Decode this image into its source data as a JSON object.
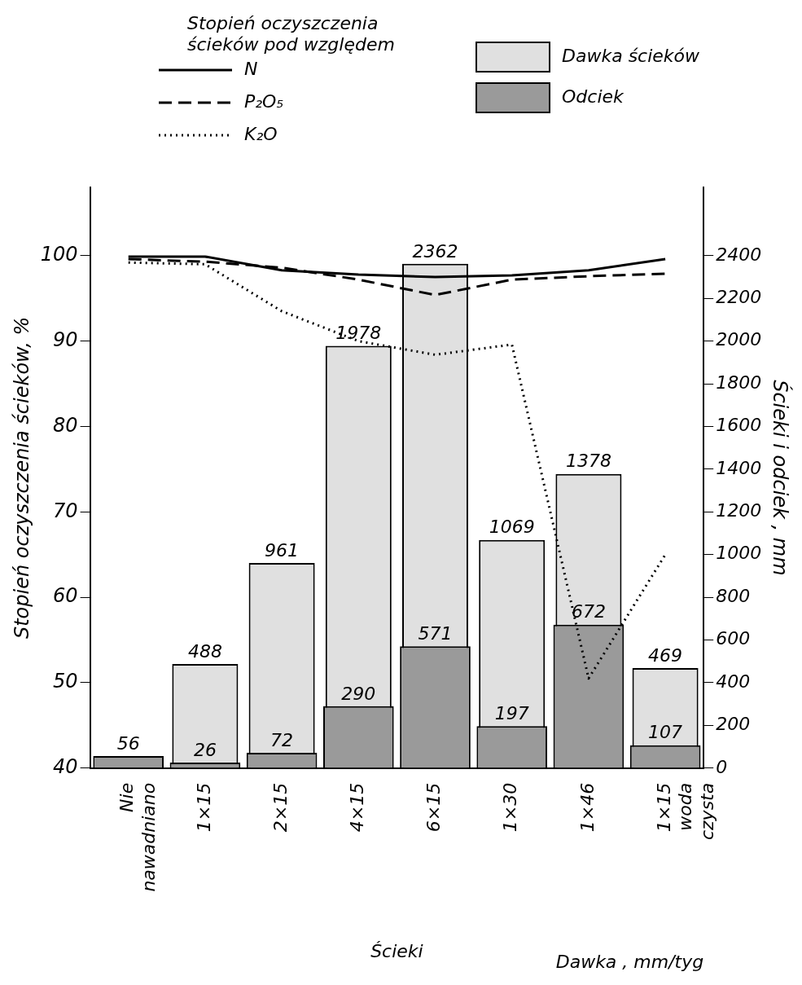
{
  "chart_data": {
    "type": "line",
    "legend_title": "Stopień oczyszczenia ścieków pod względem",
    "xlabel": "Dawka , mm/tyg",
    "ylabel": "Stopień oczyszczenia ścieków, %",
    "y2label": "Ścieki i odciek , mm",
    "categories": [
      "Nie nawadniano",
      "1×15",
      "2×15",
      "4×15",
      "6×15",
      "1×30",
      "1×46",
      "1×15 woda czysta"
    ],
    "series": [
      {
        "name": "N",
        "color": "#000000",
        "line_style": "solid",
        "values": [
          99.9,
          99.9,
          98.3,
          97.8,
          97.5,
          97.7,
          98.3,
          99.6
        ]
      },
      {
        "name": "P₂O₅",
        "color": "#000000",
        "line_style": "dashed",
        "values": [
          99.6,
          99.3,
          98.6,
          97.2,
          95.4,
          97.2,
          97.6,
          97.9
        ]
      },
      {
        "name": "K₂O",
        "color": "#000000",
        "line_style": "dotted",
        "values": [
          99.2,
          99.0,
          93.5,
          90.0,
          88.4,
          89.6,
          50.5,
          65.0
        ]
      },
      {
        "name": "Dawka ścieków",
        "type": "bar",
        "axis": "y2",
        "color": "#e0e0e0",
        "values": [
          null,
          488,
          961,
          1978,
          2362,
          1069,
          1378,
          469
        ],
        "value_labels": [
          null,
          "488",
          "961",
          "1978",
          "2362",
          "1069",
          "1378",
          "469"
        ]
      },
      {
        "name": "Odciek",
        "type": "bar",
        "axis": "y2",
        "color": "#9a9a9a",
        "values": [
          56,
          26,
          72,
          290,
          571,
          197,
          672,
          107
        ],
        "value_labels": [
          "56",
          "26",
          "72",
          "290",
          "571",
          "197",
          "672",
          "107"
        ]
      }
    ],
    "ylim": [
      40,
      108
    ],
    "yticks": [
      40,
      50,
      60,
      70,
      80,
      90,
      100
    ],
    "y2lim": [
      0,
      2720
    ],
    "y2ticks": [
      0,
      200,
      400,
      600,
      800,
      1000,
      1200,
      1400,
      1600,
      1800,
      2000,
      2200,
      2400
    ],
    "annotations": [
      "Ścieki"
    ],
    "grid": false,
    "legend": "top",
    "marker": "none"
  }
}
